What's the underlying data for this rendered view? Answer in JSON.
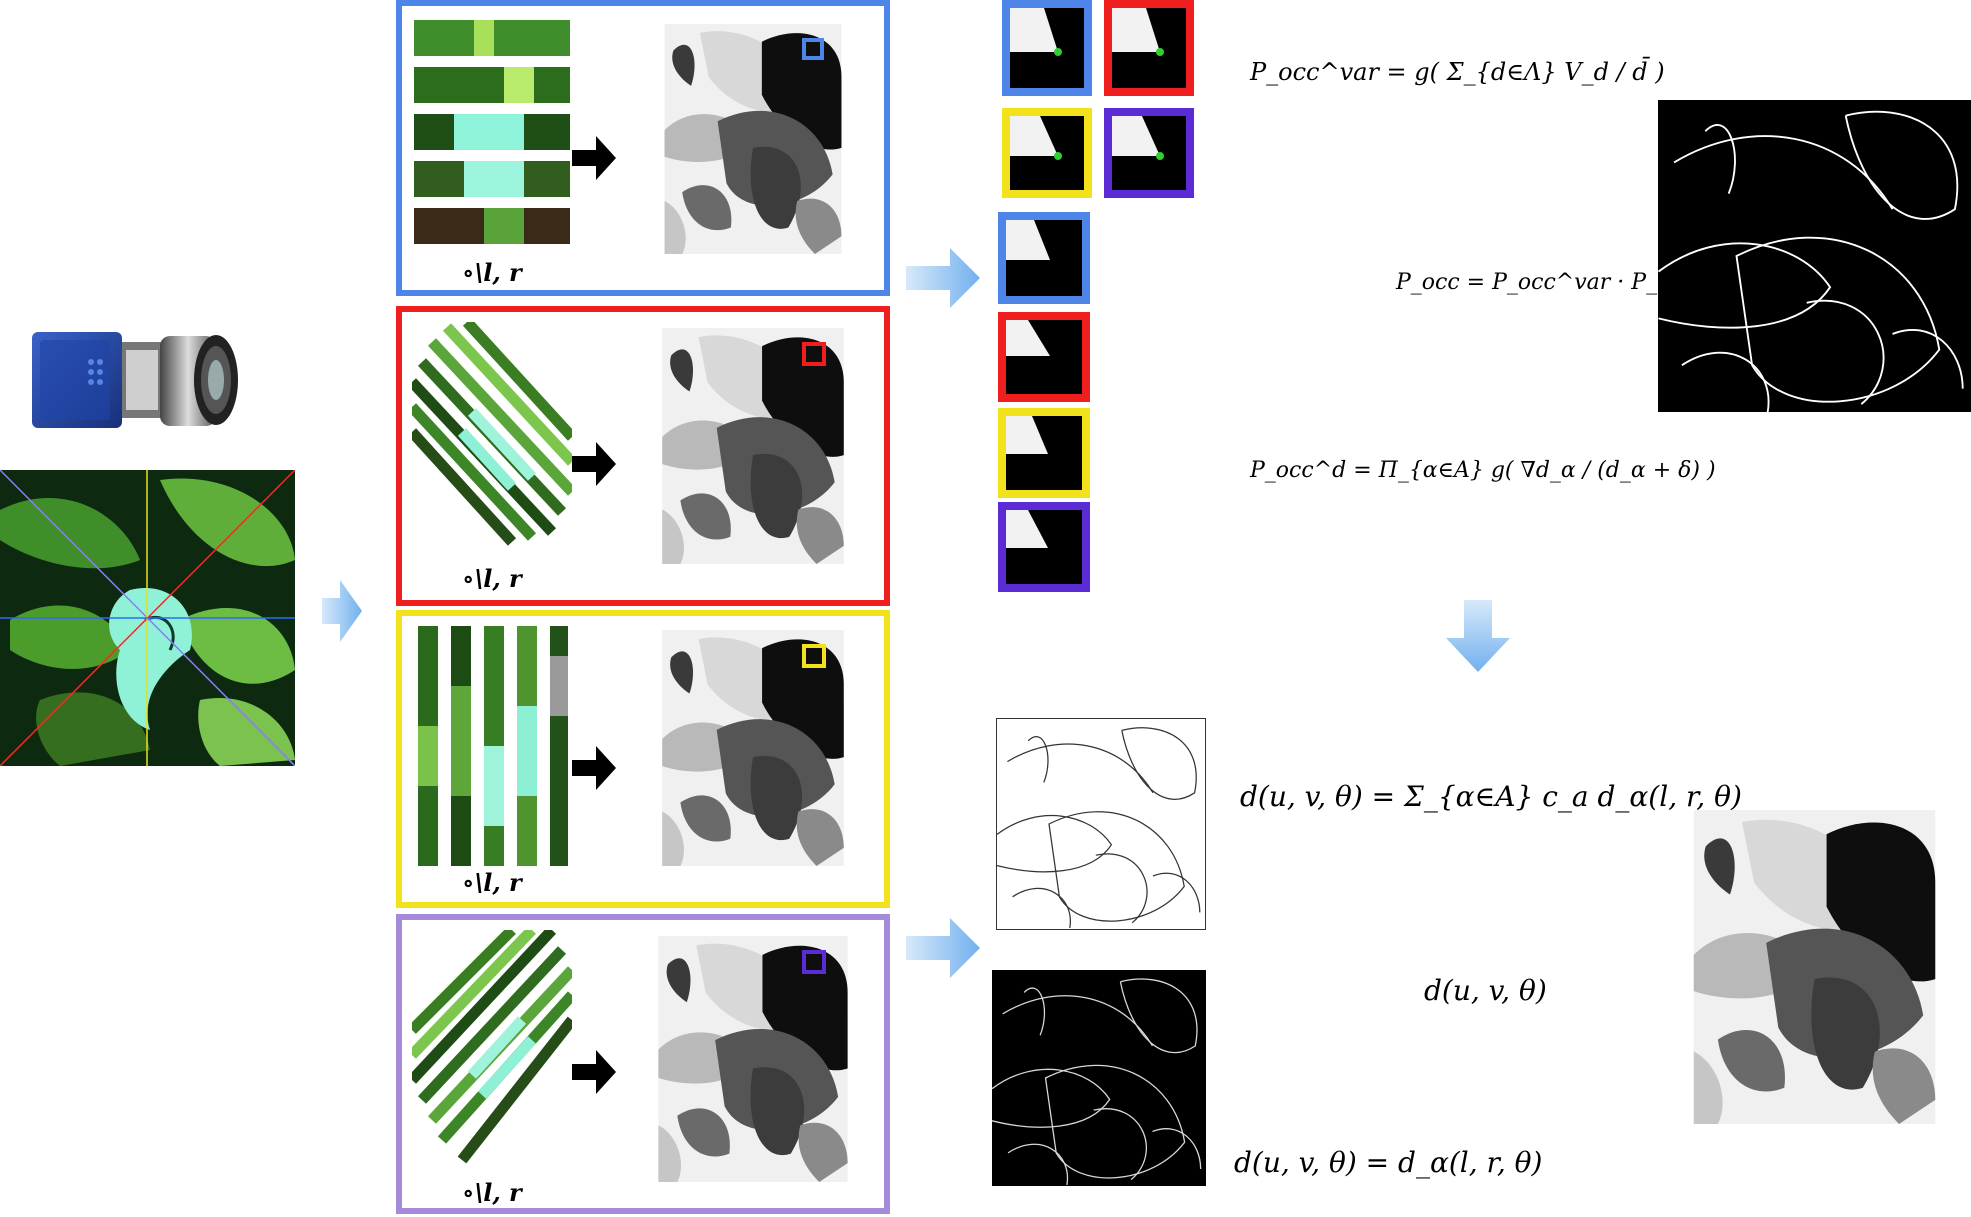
{
  "colors": {
    "blue": "#4d86e8",
    "red": "#ef1f1f",
    "yellow": "#f2e21b",
    "purple": "#a48ad8",
    "violet": "#5b2bd6",
    "arrow": "#8cc2f0",
    "green_dot": "#2fd02f"
  },
  "captions": {
    "epi_blue": "∘\\l, r",
    "epi_red": "∘\\l, r",
    "epi_yellow": "∘\\l, r",
    "epi_purple": "∘\\l, r"
  },
  "formulas": {
    "p_var": "P_occ^var = g( Σ_{d∈Λ} V_d / d̄ )",
    "p_occ": "P_occ = P_occ^var · P_occ^d",
    "p_d": "P_occ^d = Π_{α∈A} g( ∇d_α / (d_α + δ) )",
    "d_sum": "d(u, v, θ) = Σ_{α∈A} c_a d_α(l, r, θ)",
    "d_only": "d(u, v, θ)",
    "d_eq": "d(u, v, θ) = d_α(l, r, θ)"
  },
  "icons": [
    "light-field-camera-icon",
    "right-arrow-icon",
    "down-arrow-icon",
    "black-arrow-icon"
  ]
}
